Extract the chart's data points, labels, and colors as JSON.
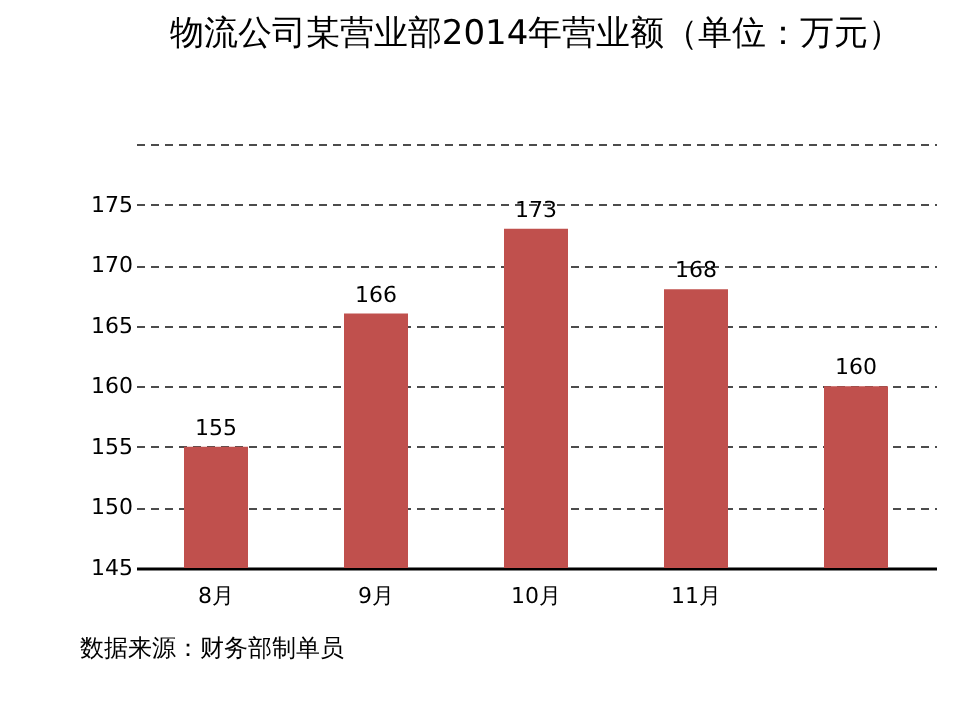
{
  "chart_data": {
    "type": "bar",
    "title": "物流公司某营业部2014年营业额（单位：万元）",
    "categories": [
      "8月",
      "9月",
      "10月",
      "11月",
      null
    ],
    "values": [
      155,
      166,
      173,
      168,
      160
    ],
    "color": "#c0504d",
    "ylim": [
      145,
      180
    ],
    "yticks": [
      145,
      150,
      155,
      160,
      165,
      170,
      175,
      {
        "value": 180,
        "label": null
      }
    ],
    "grid": "y",
    "line_style": "dashed",
    "data_labels": true,
    "annotations": [
      "数据来源：财务部制单员"
    ]
  }
}
